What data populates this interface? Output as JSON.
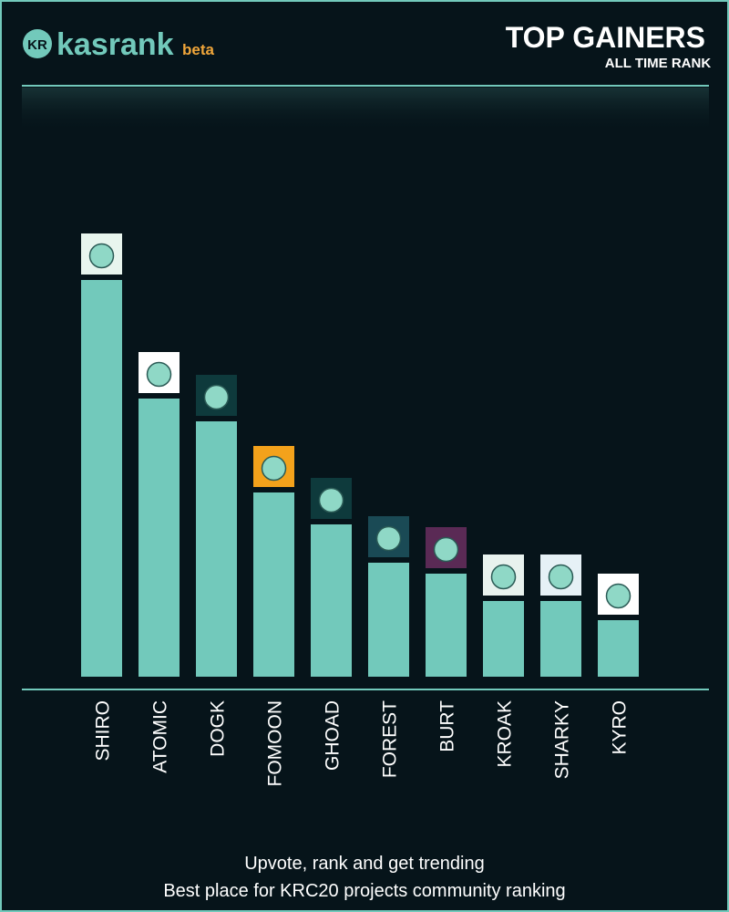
{
  "brand": {
    "name": "kasrank",
    "tag": "beta"
  },
  "chart_data": {
    "type": "bar",
    "title": "TOP GAINERS",
    "subtitle": "ALL TIME RANK",
    "categories": [
      "SHIRO",
      "ATOMIC",
      "DOGK",
      "FOMOON",
      "GHOAD",
      "FOREST",
      "BURT",
      "KROAK",
      "SHARKY",
      "KYRO"
    ],
    "values": [
      435,
      305,
      280,
      202,
      167,
      125,
      113,
      83,
      83,
      62
    ],
    "color": "#72c9bb"
  },
  "footer": [
    "Upvote, rank and get trending",
    "Best place for KRC20 projects community ranking"
  ]
}
